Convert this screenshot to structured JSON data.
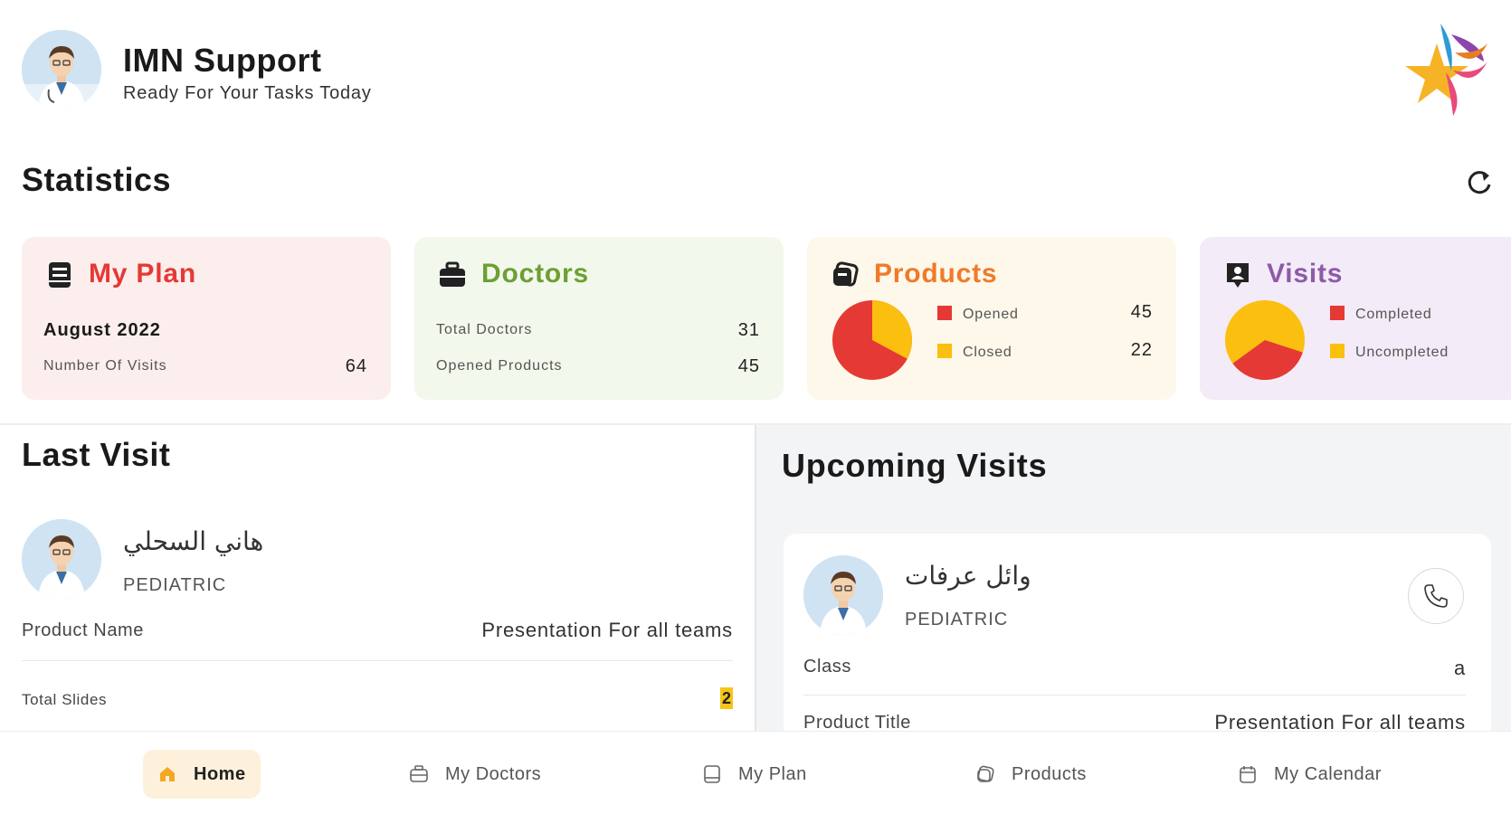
{
  "header": {
    "user_name": "IMN Support",
    "subtitle": "Ready For Your Tasks Today"
  },
  "statistics": {
    "title": "Statistics"
  },
  "cards": {
    "plan": {
      "title": "My Plan",
      "month": "August 2022",
      "visits_label": "Number Of Visits",
      "visits_value": "64"
    },
    "doctors": {
      "title": "Doctors",
      "total_label": "Total Doctors",
      "total_value": "31",
      "opened_label": "Opened Products",
      "opened_value": "45"
    },
    "products": {
      "title": "Products",
      "opened_label": "Opened",
      "opened_value": "45",
      "closed_label": "Closed",
      "closed_value": "22",
      "opened_color": "#e53935",
      "closed_color": "#fbbf0f"
    },
    "visits": {
      "title": "Visits",
      "completed_label": "Completed",
      "uncompleted_label": "Uncompleted",
      "completed_color": "#e53935",
      "uncompleted_color": "#fbbf0f",
      "completed_fraction": 0.35
    }
  },
  "last_visit": {
    "title": "Last Visit",
    "doctor_name": "هاني السحلي",
    "specialty": "PEDIATRIC",
    "product_label": "Product Name",
    "product_value": "Presentation For all teams",
    "slides_label": "Total Slides",
    "slides_value": "2"
  },
  "upcoming": {
    "title": "Upcoming Visits",
    "doctor_name": "وائل عرفات",
    "specialty": "PEDIATRIC",
    "class_label": "Class",
    "class_value": "a",
    "product_label": "Product Title",
    "product_value": "Presentation For all teams"
  },
  "nav": {
    "home": "Home",
    "doctors": "My Doctors",
    "plan": "My Plan",
    "products": "Products",
    "calendar": "My Calendar"
  }
}
